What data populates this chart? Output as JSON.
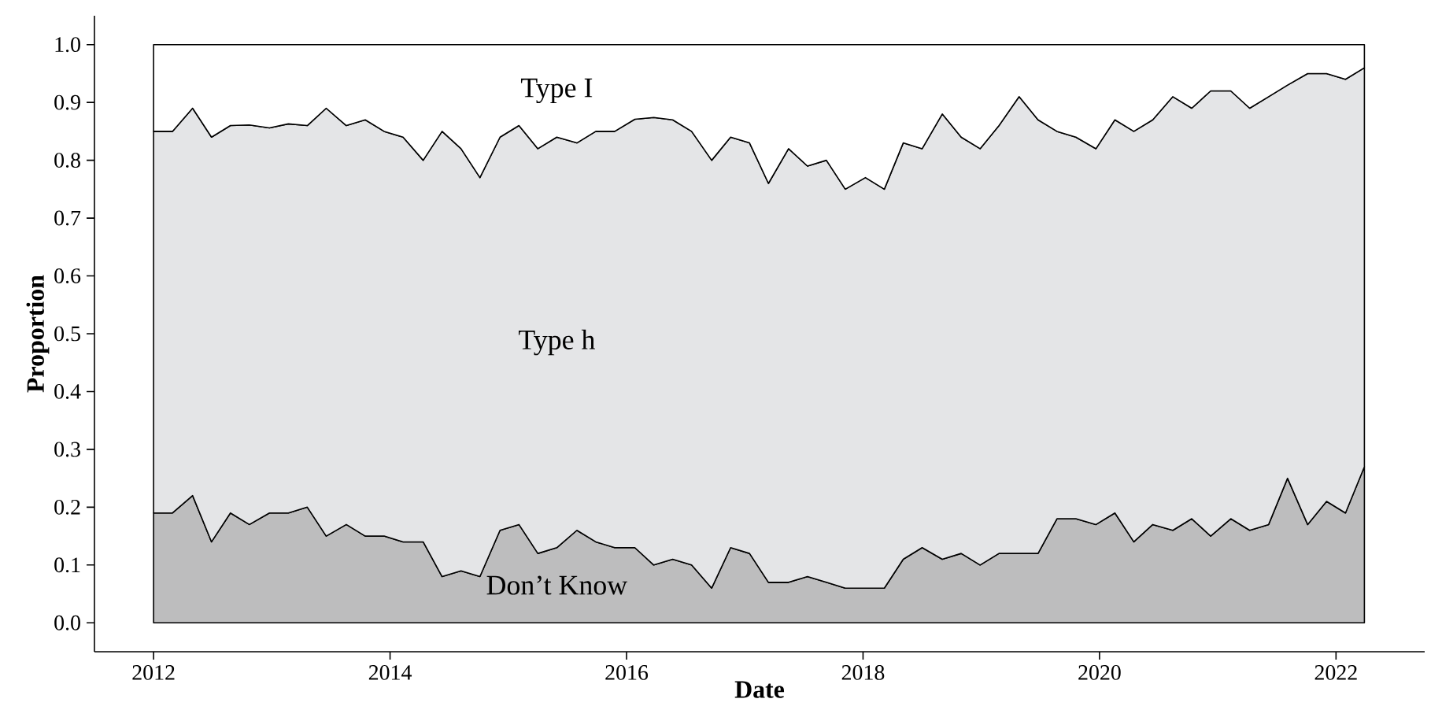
{
  "chart_data": {
    "type": "area",
    "stacked": true,
    "xlabel": "Date",
    "ylabel": "Proportion",
    "x": [
      2012.0,
      2012.16,
      2012.33,
      2012.49,
      2012.65,
      2012.81,
      2012.98,
      2013.14,
      2013.3,
      2013.46,
      2013.63,
      2013.79,
      2013.95,
      2014.11,
      2014.28,
      2014.44,
      2014.6,
      2014.76,
      2014.93,
      2015.09,
      2015.25,
      2015.41,
      2015.58,
      2015.74,
      2015.9,
      2016.07,
      2016.23,
      2016.39,
      2016.55,
      2016.72,
      2016.88,
      2017.04,
      2017.2,
      2017.37,
      2017.53,
      2017.69,
      2017.85,
      2018.02,
      2018.18,
      2018.34,
      2018.5,
      2018.67,
      2018.83,
      2018.99,
      2019.15,
      2019.32,
      2019.48,
      2019.64,
      2019.8,
      2019.97,
      2020.13,
      2020.29,
      2020.45,
      2020.62,
      2020.78,
      2020.94,
      2021.11,
      2021.27,
      2021.43,
      2021.59,
      2021.76,
      2021.92,
      2022.08,
      2022.24
    ],
    "series": [
      {
        "name": "Don’t Know",
        "color": "#bdbdbe",
        "values": [
          0.19,
          0.19,
          0.22,
          0.14,
          0.19,
          0.17,
          0.19,
          0.19,
          0.2,
          0.15,
          0.17,
          0.15,
          0.15,
          0.14,
          0.14,
          0.08,
          0.09,
          0.08,
          0.16,
          0.17,
          0.12,
          0.13,
          0.16,
          0.14,
          0.13,
          0.13,
          0.1,
          0.11,
          0.1,
          0.06,
          0.13,
          0.12,
          0.07,
          0.07,
          0.08,
          0.07,
          0.06,
          0.06,
          0.06,
          0.11,
          0.13,
          0.11,
          0.12,
          0.1,
          0.12,
          0.12,
          0.12,
          0.18,
          0.18,
          0.17,
          0.19,
          0.14,
          0.17,
          0.16,
          0.18,
          0.15,
          0.18,
          0.16,
          0.17,
          0.25,
          0.17,
          0.21,
          0.19,
          0.27
        ]
      },
      {
        "name": "Type h",
        "color": "#e4e5e7",
        "values": [
          0.66,
          0.66,
          0.67,
          0.7,
          0.67,
          0.691,
          0.666,
          0.673,
          0.66,
          0.74,
          0.69,
          0.72,
          0.7,
          0.7,
          0.66,
          0.77,
          0.73,
          0.69,
          0.68,
          0.69,
          0.7,
          0.71,
          0.67,
          0.71,
          0.72,
          0.741,
          0.774,
          0.76,
          0.75,
          0.74,
          0.71,
          0.71,
          0.69,
          0.75,
          0.71,
          0.73,
          0.69,
          0.71,
          0.69,
          0.72,
          0.69,
          0.77,
          0.72,
          0.72,
          0.74,
          0.79,
          0.75,
          0.67,
          0.66,
          0.65,
          0.68,
          0.71,
          0.7,
          0.75,
          0.71,
          0.77,
          0.74,
          0.73,
          0.74,
          0.68,
          0.78,
          0.74,
          0.75,
          0.69
        ]
      },
      {
        "name": "Type I",
        "color": "#ffffff",
        "values": [
          0.15,
          0.15,
          0.11,
          0.16,
          0.14,
          0.139,
          0.144,
          0.137,
          0.14,
          0.11,
          0.14,
          0.13,
          0.15,
          0.16,
          0.2,
          0.15,
          0.18,
          0.23,
          0.16,
          0.14,
          0.18,
          0.16,
          0.17,
          0.15,
          0.15,
          0.129,
          0.126,
          0.13,
          0.15,
          0.2,
          0.16,
          0.17,
          0.24,
          0.18,
          0.21,
          0.2,
          0.25,
          0.23,
          0.25,
          0.17,
          0.18,
          0.12,
          0.16,
          0.18,
          0.14,
          0.09,
          0.13,
          0.15,
          0.16,
          0.18,
          0.13,
          0.15,
          0.13,
          0.09,
          0.11,
          0.08,
          0.08,
          0.11,
          0.09,
          0.07,
          0.05,
          0.05,
          0.06,
          0.04
        ]
      }
    ],
    "xlim": [
      2011.5,
      2022.75
    ],
    "xticks": [
      2012,
      2014,
      2016,
      2018,
      2020,
      2022
    ],
    "ylim": [
      -0.05,
      1.05
    ],
    "yticks": [
      {
        "value": 0,
        "label": "0.0"
      },
      {
        "value": 0.1,
        "label": "0.1"
      },
      {
        "value": 0.2,
        "label": "0.2"
      },
      {
        "value": 0.3,
        "label": "0.3"
      },
      {
        "value": 0.4,
        "label": "0.4"
      },
      {
        "value": 0.5,
        "label": "0.5"
      },
      {
        "value": 0.6,
        "label": "0.6"
      },
      {
        "value": 0.7,
        "label": "0.7"
      },
      {
        "value": 0.8,
        "label": "0.8"
      },
      {
        "value": 0.9,
        "label": "0.9"
      },
      {
        "value": 1,
        "label": "1.0"
      }
    ]
  }
}
